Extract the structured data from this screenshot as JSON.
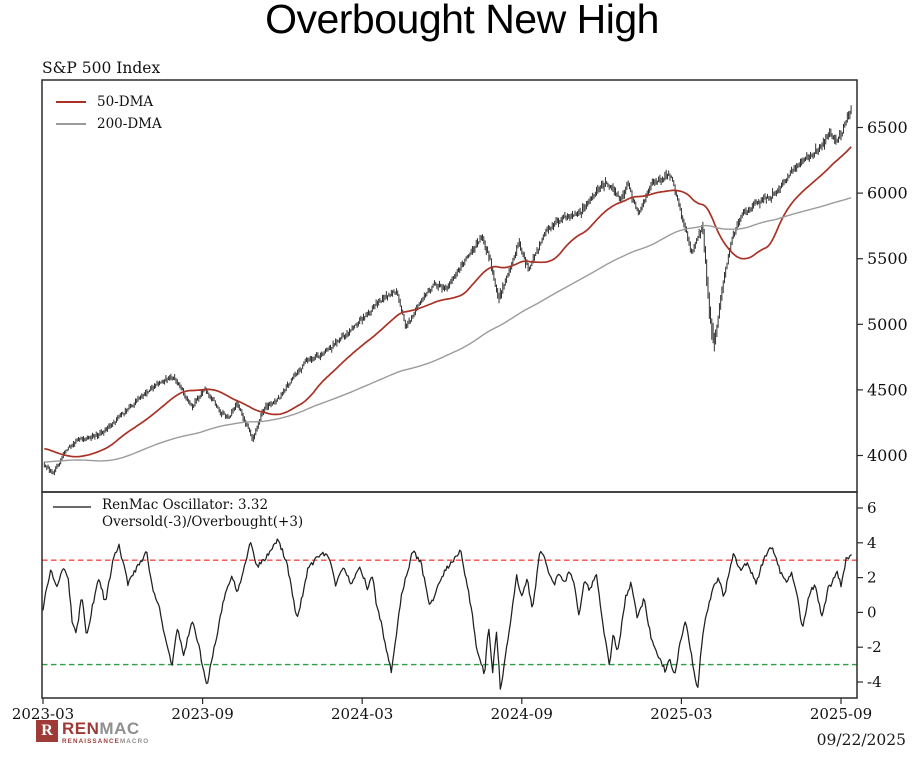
{
  "title": "Overbought New High",
  "footer": {
    "date": "09/22/2025",
    "logo": {
      "mark_letter": "R",
      "mark_color": "#9e3b36",
      "word_left": "REN",
      "word_right": "MAC",
      "sub_left": "RENAISSANCE",
      "sub_right": "MACRO",
      "red": "#9e3b36",
      "gray": "#8f8f8f"
    }
  },
  "x_axis": {
    "tick_ts": [
      0,
      6,
      12,
      18,
      24,
      30
    ],
    "tick_labels": [
      "2023-03",
      "2023-09",
      "2024-03",
      "2024-09",
      "2025-03",
      "2025-09"
    ]
  },
  "price_panel": {
    "label": "S&P 500 Index",
    "legend": [
      {
        "name": "50-DMA",
        "color": "#a93226"
      },
      {
        "name": "200-DMA",
        "color": "#9b9b9b"
      }
    ]
  },
  "osc_panel": {
    "legend_line1": "RenMac Oscillator: 3.32",
    "legend_line2": "Oversold(-3)/Overbought(+3)",
    "swatch_color": "#6b6b6b"
  },
  "chart_data": [
    {
      "type": "line",
      "panel": "price",
      "title": "S&P 500 Index",
      "ylim": [
        3722,
        6862
      ],
      "yticks": [
        4000,
        4500,
        5000,
        5500,
        6000,
        6500
      ],
      "x_unit": "months_since_2023-03",
      "xlim": [
        0,
        30.64
      ],
      "series": [
        {
          "name": "S&P 500",
          "style": "hl-bars",
          "color": "#1c1c1c",
          "visible_from": 0,
          "anchors": [
            [
              -10,
              4140
            ],
            [
              -9.4,
              3700
            ],
            [
              -8.8,
              3820
            ],
            [
              -8.2,
              4120
            ],
            [
              -7.6,
              4290
            ],
            [
              -7.0,
              3990
            ],
            [
              -6.4,
              3680
            ],
            [
              -5.9,
              3600
            ],
            [
              -5.4,
              3760
            ],
            [
              -4.9,
              3950
            ],
            [
              -4.4,
              4060
            ],
            [
              -3.9,
              3990
            ],
            [
              -3.4,
              3840
            ],
            [
              -2.9,
              3860
            ],
            [
              -2.4,
              4020
            ],
            [
              -1.9,
              4070
            ],
            [
              -1.4,
              4170
            ],
            [
              -0.9,
              4050
            ],
            [
              -0.45,
              3980
            ],
            [
              0,
              3950
            ],
            [
              0.4,
              3860
            ],
            [
              0.9,
              4050
            ],
            [
              1.3,
              4120
            ],
            [
              1.8,
              4135
            ],
            [
              2.3,
              4180
            ],
            [
              2.9,
              4300
            ],
            [
              3.6,
              4430
            ],
            [
              4.4,
              4560
            ],
            [
              4.9,
              4600
            ],
            [
              5.3,
              4480
            ],
            [
              5.6,
              4370
            ],
            [
              6.1,
              4510
            ],
            [
              6.7,
              4330
            ],
            [
              7.0,
              4290
            ],
            [
              7.3,
              4390
            ],
            [
              7.9,
              4120
            ],
            [
              8.3,
              4360
            ],
            [
              8.8,
              4420
            ],
            [
              9.3,
              4560
            ],
            [
              9.9,
              4720
            ],
            [
              10.6,
              4780
            ],
            [
              11.0,
              4850
            ],
            [
              11.6,
              4960
            ],
            [
              12.3,
              5100
            ],
            [
              12.9,
              5220
            ],
            [
              13.3,
              5250
            ],
            [
              13.65,
              4967
            ],
            [
              14.2,
              5180
            ],
            [
              14.7,
              5300
            ],
            [
              15.2,
              5280
            ],
            [
              15.7,
              5430
            ],
            [
              16.5,
              5667
            ],
            [
              16.8,
              5500
            ],
            [
              17.15,
              5186
            ],
            [
              17.9,
              5620
            ],
            [
              18.25,
              5420
            ],
            [
              18.9,
              5710
            ],
            [
              19.6,
              5820
            ],
            [
              20.2,
              5850
            ],
            [
              20.9,
              6030
            ],
            [
              21.2,
              6090
            ],
            [
              21.7,
              5950
            ],
            [
              22.0,
              6060
            ],
            [
              22.4,
              5840
            ],
            [
              22.9,
              6080
            ],
            [
              23.6,
              6140
            ],
            [
              24.1,
              5780
            ],
            [
              24.4,
              5530
            ],
            [
              24.8,
              5760
            ],
            [
              25.05,
              5100
            ],
            [
              25.25,
              4860
            ],
            [
              25.55,
              5280
            ],
            [
              25.9,
              5650
            ],
            [
              26.3,
              5840
            ],
            [
              26.8,
              5920
            ],
            [
              27.3,
              5960
            ],
            [
              27.9,
              6090
            ],
            [
              28.3,
              6200
            ],
            [
              28.8,
              6280
            ],
            [
              29.2,
              6340
            ],
            [
              29.6,
              6460
            ],
            [
              29.85,
              6390
            ],
            [
              30.1,
              6500
            ],
            [
              30.4,
              6660
            ]
          ]
        },
        {
          "name": "50-DMA",
          "style": "line",
          "color": "#a93226",
          "derived": "sma",
          "window_days": 50
        },
        {
          "name": "200-DMA",
          "style": "line",
          "color": "#9b9b9b",
          "derived": "sma",
          "window_days": 200
        }
      ]
    },
    {
      "type": "line",
      "panel": "oscillator",
      "name": "RenMac Oscillator",
      "last_value": 3.32,
      "color": "#1f1f1f",
      "ylim": [
        -5.1,
        6.9
      ],
      "yticks": [
        -4,
        -2,
        0,
        2,
        4,
        6
      ],
      "hlines": [
        {
          "label": "Overbought",
          "value": 3,
          "color": "#fb4a47",
          "dash": true
        },
        {
          "label": "Oversold",
          "value": -3,
          "color": "#2f9e44",
          "dash": true
        }
      ],
      "anchors": [
        [
          0,
          0.0
        ],
        [
          0.15,
          1.6
        ],
        [
          0.3,
          2.4
        ],
        [
          0.5,
          1.5
        ],
        [
          0.75,
          2.6
        ],
        [
          0.95,
          1.9
        ],
        [
          1.1,
          -0.5
        ],
        [
          1.25,
          -1.3
        ],
        [
          1.45,
          1.0
        ],
        [
          1.65,
          -1.45
        ],
        [
          1.85,
          0.3
        ],
        [
          2.1,
          2.0
        ],
        [
          2.35,
          0.5
        ],
        [
          2.6,
          2.8
        ],
        [
          2.85,
          3.9
        ],
        [
          3.2,
          1.6
        ],
        [
          3.5,
          2.5
        ],
        [
          3.9,
          3.45
        ],
        [
          4.1,
          1.5
        ],
        [
          4.35,
          0.4
        ],
        [
          4.6,
          -1.5
        ],
        [
          4.85,
          -3.0
        ],
        [
          5.05,
          -0.9
        ],
        [
          5.3,
          -2.5
        ],
        [
          5.6,
          -0.4
        ],
        [
          5.85,
          -1.9
        ],
        [
          6.15,
          -4.25
        ],
        [
          6.5,
          -1.6
        ],
        [
          6.8,
          0.8
        ],
        [
          7.1,
          2.2
        ],
        [
          7.3,
          1.0
        ],
        [
          7.8,
          4.05
        ],
        [
          8.05,
          2.6
        ],
        [
          8.45,
          3.3
        ],
        [
          8.8,
          4.2
        ],
        [
          9.15,
          3.0
        ],
        [
          9.55,
          -0.45
        ],
        [
          9.95,
          2.4
        ],
        [
          10.3,
          3.25
        ],
        [
          10.7,
          3.4
        ],
        [
          11.0,
          1.6
        ],
        [
          11.3,
          2.6
        ],
        [
          11.6,
          1.5
        ],
        [
          11.9,
          2.7
        ],
        [
          12.2,
          1.4
        ],
        [
          12.4,
          2.2
        ],
        [
          12.55,
          0.3
        ],
        [
          12.7,
          -0.5
        ],
        [
          12.95,
          -2.5
        ],
        [
          13.1,
          -3.4
        ],
        [
          13.5,
          1.2
        ],
        [
          13.9,
          3.5
        ],
        [
          14.2,
          2.9
        ],
        [
          14.55,
          0.3
        ],
        [
          14.9,
          1.8
        ],
        [
          15.2,
          2.6
        ],
        [
          15.7,
          3.5
        ],
        [
          16.1,
          0.3
        ],
        [
          16.3,
          -2.0
        ],
        [
          16.6,
          -3.6
        ],
        [
          16.75,
          -0.9
        ],
        [
          16.9,
          -3.4
        ],
        [
          17.05,
          -1.05
        ],
        [
          17.2,
          -4.5
        ],
        [
          17.5,
          -1.3
        ],
        [
          17.8,
          2.15
        ],
        [
          18.0,
          0.85
        ],
        [
          18.2,
          2.0
        ],
        [
          18.4,
          0.15
        ],
        [
          18.7,
          3.7
        ],
        [
          19.2,
          1.6
        ],
        [
          19.45,
          2.3
        ],
        [
          19.6,
          1.6
        ],
        [
          19.8,
          2.4
        ],
        [
          20.0,
          1.4
        ],
        [
          20.15,
          -0.3
        ],
        [
          20.35,
          1.9
        ],
        [
          20.55,
          1.3
        ],
        [
          20.8,
          2.15
        ],
        [
          21.0,
          -0.2
        ],
        [
          21.3,
          -3.05
        ],
        [
          21.45,
          -1.1
        ],
        [
          21.6,
          -2.4
        ],
        [
          21.9,
          0.9
        ],
        [
          22.1,
          1.65
        ],
        [
          22.35,
          -0.3
        ],
        [
          22.6,
          0.8
        ],
        [
          22.85,
          -1.4
        ],
        [
          23.1,
          -2.4
        ],
        [
          23.4,
          -3.4
        ],
        [
          23.55,
          -2.6
        ],
        [
          23.75,
          -3.55
        ],
        [
          23.95,
          -1.8
        ],
        [
          24.15,
          -0.5
        ],
        [
          24.35,
          -2.2
        ],
        [
          24.6,
          -4.5
        ],
        [
          24.8,
          -1.3
        ],
        [
          25.0,
          0.3
        ],
        [
          25.2,
          1.45
        ],
        [
          25.4,
          2.0
        ],
        [
          25.6,
          0.85
        ],
        [
          25.95,
          3.4
        ],
        [
          26.2,
          2.4
        ],
        [
          26.5,
          2.9
        ],
        [
          26.8,
          1.6
        ],
        [
          27.1,
          3.1
        ],
        [
          27.4,
          3.8
        ],
        [
          27.7,
          2.4
        ],
        [
          27.95,
          1.85
        ],
        [
          28.15,
          2.3
        ],
        [
          28.35,
          1.0
        ],
        [
          28.55,
          -1.05
        ],
        [
          28.8,
          1.0
        ],
        [
          29.0,
          1.6
        ],
        [
          29.3,
          -0.25
        ],
        [
          29.5,
          1.3
        ],
        [
          29.7,
          1.85
        ],
        [
          29.85,
          2.3
        ],
        [
          30.0,
          1.6
        ],
        [
          30.2,
          3.1
        ],
        [
          30.4,
          3.32
        ]
      ]
    }
  ]
}
